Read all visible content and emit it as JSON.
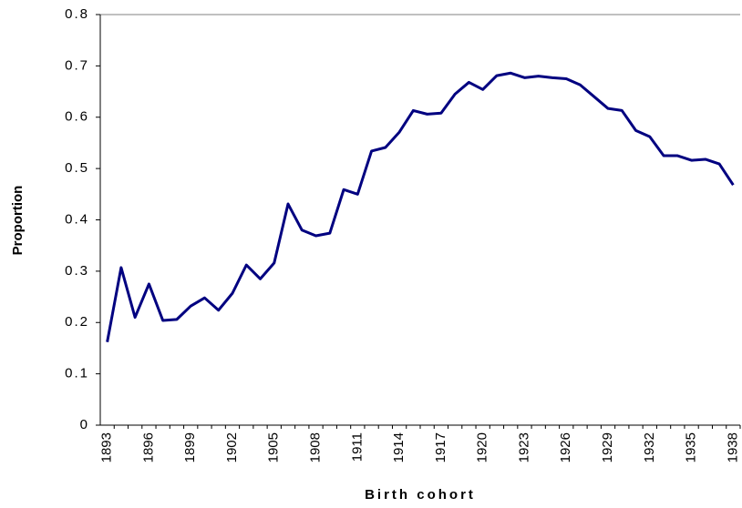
{
  "chart_data": {
    "type": "line",
    "x_label": "Birth cohort",
    "y_label": "Proportion",
    "categories": [
      "1893",
      null,
      null,
      "1896",
      null,
      null,
      "1899",
      null,
      null,
      "1902",
      null,
      null,
      "1905",
      null,
      null,
      "1908",
      null,
      null,
      "1911",
      null,
      null,
      "1914",
      null,
      null,
      "1917",
      null,
      null,
      "1920",
      null,
      null,
      "1923",
      null,
      null,
      "1926",
      null,
      null,
      "1929",
      null,
      null,
      "1932",
      null,
      null,
      "1935",
      null,
      null,
      "1938"
    ],
    "series": [
      {
        "name": "Proportion",
        "color": "#000080",
        "values": [
          0.162,
          0.307,
          0.21,
          0.275,
          0.204,
          0.206,
          0.232,
          0.248,
          0.224,
          0.257,
          0.312,
          0.285,
          0.316,
          0.431,
          0.38,
          0.369,
          0.374,
          0.459,
          0.45,
          0.534,
          0.541,
          0.571,
          0.613,
          0.606,
          0.608,
          0.645,
          0.668,
          0.654,
          0.681,
          0.686,
          0.677,
          0.68,
          0.677,
          0.675,
          0.663,
          0.64,
          0.617,
          0.613,
          0.574,
          0.562,
          0.525,
          0.525,
          0.516,
          0.518,
          0.509,
          0.468
        ]
      }
    ],
    "ylim": [
      0,
      0.8
    ],
    "yticks": [
      0,
      0.1,
      0.2,
      0.3,
      0.4,
      0.5,
      0.6,
      0.7,
      0.8
    ],
    "grid": false
  }
}
